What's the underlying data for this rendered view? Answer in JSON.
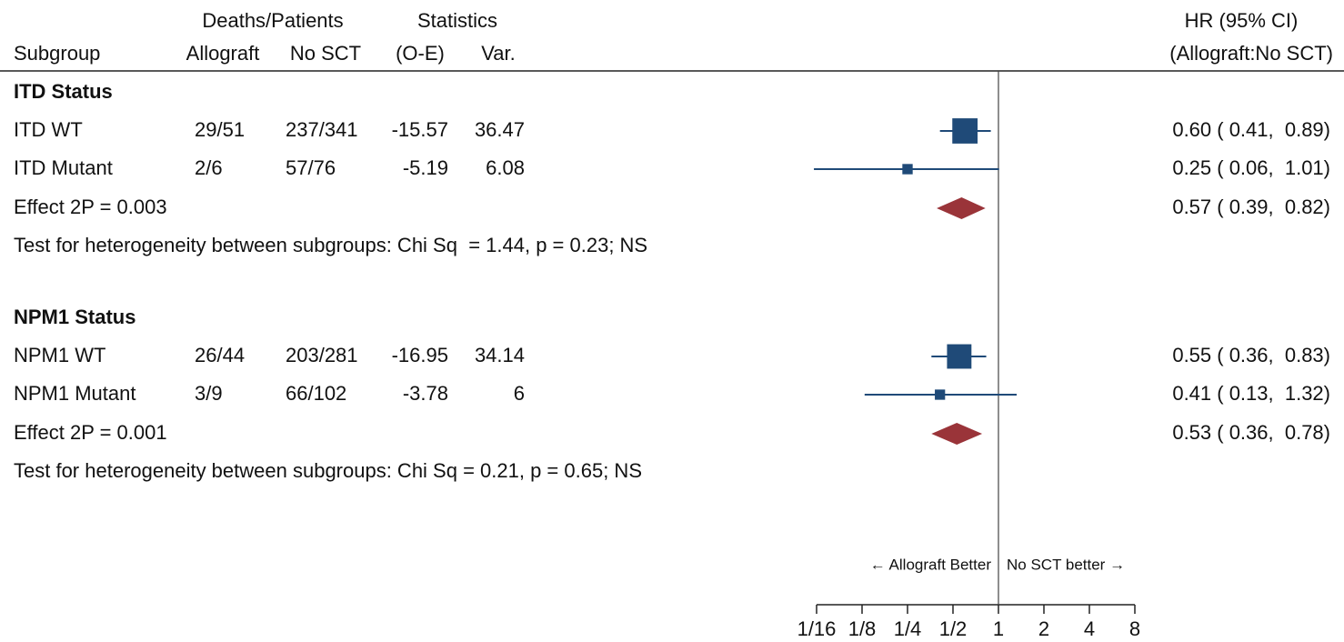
{
  "chart_data": {
    "type": "forest",
    "headers": {
      "deaths_patients": "Deaths/Patients",
      "statistics": "Statistics",
      "subgroup": "Subgroup",
      "allograft": "Allograft",
      "no_sct": "No SCT",
      "o_e": "(O-E)",
      "var": "Var.",
      "hr": "HR (95% CI)",
      "hr_ratio": "(Allograft:No SCT)"
    },
    "groups": [
      {
        "title": "ITD Status",
        "rows": [
          {
            "label": "ITD WT",
            "allograft": "29/51",
            "no_sct": "237/341",
            "o_e": -15.57,
            "var": 36.47,
            "hr": 0.6,
            "ci": [
              0.41,
              0.89
            ],
            "hr_label": "0.60 ( 0.41,  0.89)"
          },
          {
            "label": "ITD Mutant",
            "allograft": "2/6",
            "no_sct": "57/76",
            "o_e": -5.19,
            "var": 6.08,
            "hr": 0.25,
            "ci": [
              0.06,
              1.01
            ],
            "hr_label": "0.25 ( 0.06,  1.01)"
          }
        ],
        "effect": {
          "label": "Effect 2P = 0.003",
          "hr": 0.57,
          "ci": [
            0.39,
            0.82
          ],
          "hr_label": "0.57 ( 0.39,  0.82)"
        },
        "heterogeneity": "Test for heterogeneity between subgroups: Chi Sq  = 1.44, p = 0.23; NS"
      },
      {
        "title": "NPM1 Status",
        "rows": [
          {
            "label": "NPM1 WT",
            "allograft": "26/44",
            "no_sct": "203/281",
            "o_e": -16.95,
            "var": 34.14,
            "hr": 0.55,
            "ci": [
              0.36,
              0.83
            ],
            "hr_label": "0.55 ( 0.36,  0.83)"
          },
          {
            "label": "NPM1 Mutant",
            "allograft": "3/9",
            "no_sct": "66/102",
            "o_e": -3.78,
            "var": 6,
            "hr": 0.41,
            "ci": [
              0.13,
              1.32
            ],
            "hr_label": "0.41 ( 0.13,  1.32)"
          }
        ],
        "effect": {
          "label": "Effect 2P = 0.001",
          "hr": 0.53,
          "ci": [
            0.36,
            0.78
          ],
          "hr_label": "0.53 ( 0.36,  0.78)"
        },
        "heterogeneity": "Test for heterogeneity between subgroups: Chi Sq = 0.21, p = 0.65; NS"
      }
    ],
    "xscale": "log",
    "xlim": [
      0.0625,
      8
    ],
    "xticks": [
      {
        "value": 0.0625,
        "label": "1/16"
      },
      {
        "value": 0.125,
        "label": "1/8"
      },
      {
        "value": 0.25,
        "label": "1/4"
      },
      {
        "value": 0.5,
        "label": "1/2"
      },
      1,
      2,
      4,
      8
    ],
    "reference_line": 1,
    "annotations": {
      "left": "← Allograft Better",
      "right": "No SCT better →"
    },
    "box_color": "#1f4a78",
    "diamond_color": "#9a3439"
  }
}
